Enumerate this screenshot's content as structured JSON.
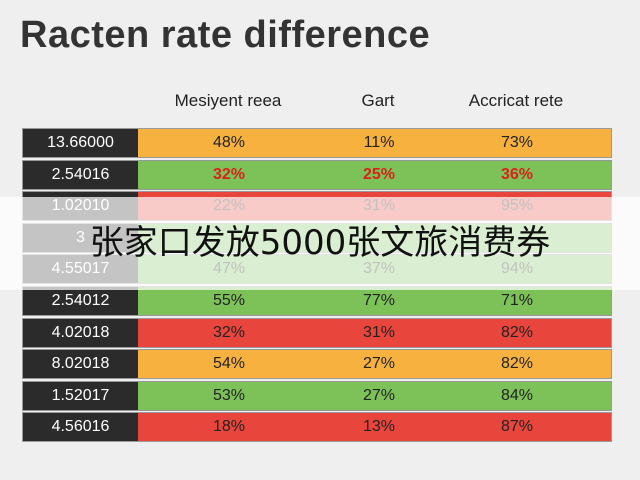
{
  "title": "Racten rate difference",
  "table": {
    "headers": [
      "Mesiyent reea",
      "Gart",
      "Accricat rete"
    ],
    "rows": [
      {
        "label": "13.66000",
        "values": [
          "48%",
          "11%",
          "73%"
        ],
        "color": "#f6b13f"
      },
      {
        "label": "2.54016",
        "values": [
          "32%",
          "25%",
          "36%"
        ],
        "color": "#7cc259",
        "text_color": "#d8231c"
      },
      {
        "label": "1.02010",
        "values": [
          "22%",
          "31%",
          "95%"
        ],
        "color": "#e8453c"
      },
      {
        "label": "3",
        "color": "#7cc259"
      },
      {
        "label": "4.55017",
        "values": [
          "47%",
          "37%",
          "94%"
        ],
        "color": "#7cc259"
      },
      {
        "label": "2.54012",
        "values": [
          "55%",
          "77%",
          "71%"
        ],
        "color": "#7cc259"
      },
      {
        "label": "4.02018",
        "values": [
          "32%",
          "31%",
          "82%"
        ],
        "color": "#e8453c"
      },
      {
        "label": "8.02018",
        "values": [
          "54%",
          "27%",
          "82%"
        ],
        "color": "#f6b13f"
      },
      {
        "label": "1.52017",
        "values": [
          "53%",
          "27%",
          "84%"
        ],
        "color": "#7cc259"
      },
      {
        "label": "4.56016",
        "values": [
          "18%",
          "13%",
          "87%"
        ],
        "color": "#e8453c"
      }
    ]
  },
  "banner": "张家口发放5000张文旅消费券"
}
